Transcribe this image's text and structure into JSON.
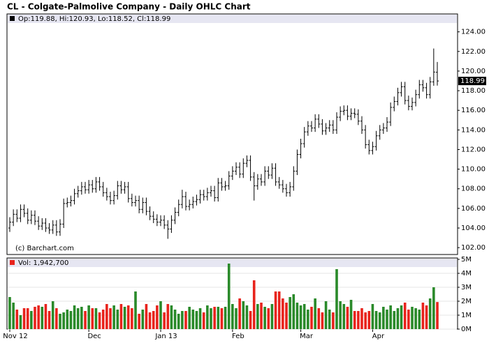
{
  "chart_data": [
    {
      "type": "ohlc",
      "title": "CL - Colgate-Palmolive Company - Daily OHLC Chart",
      "legend_text": "Op:119.88, Hi:120.93, Lo:118.52, Cl:118.99",
      "annotation": "(c) Barchart.com",
      "color": "#000000",
      "last": 118.99,
      "grid": false,
      "ylim": [
        101.3,
        124.9
      ],
      "yticks": [
        {
          "value": 102,
          "label": "102.00"
        },
        {
          "value": 104,
          "label": "104.00"
        },
        {
          "value": 106,
          "label": "106.00"
        },
        {
          "value": 108,
          "label": "108.00"
        },
        {
          "value": 110,
          "label": "110.00"
        },
        {
          "value": 112,
          "label": "112.00"
        },
        {
          "value": 114,
          "label": "114.00"
        },
        {
          "value": 116,
          "label": "116.00"
        },
        {
          "value": 118,
          "label": "118.00"
        },
        {
          "value": 120,
          "label": "120.00"
        },
        {
          "value": 122,
          "label": "122.00"
        },
        {
          "value": 124,
          "label": "124.00"
        }
      ],
      "categories": [
        "Nov 12",
        null,
        null,
        null,
        null,
        null,
        null,
        null,
        null,
        null,
        null,
        null,
        null,
        null,
        null,
        null,
        null,
        null,
        null,
        null,
        null,
        null,
        "Dec",
        null,
        null,
        null,
        null,
        null,
        null,
        null,
        null,
        null,
        null,
        null,
        null,
        null,
        null,
        null,
        null,
        null,
        null,
        null,
        "Jan 13",
        null,
        null,
        null,
        null,
        null,
        null,
        null,
        null,
        null,
        null,
        null,
        null,
        null,
        null,
        null,
        null,
        null,
        null,
        null,
        "Feb",
        null,
        null,
        null,
        null,
        null,
        null,
        null,
        null,
        null,
        null,
        null,
        null,
        null,
        null,
        null,
        null,
        null,
        null,
        "Mar",
        null,
        null,
        null,
        null,
        null,
        null,
        null,
        null,
        null,
        null,
        null,
        null,
        null,
        null,
        null,
        null,
        null,
        null,
        null,
        "Apr",
        null,
        null,
        null,
        null,
        null,
        null,
        null,
        null,
        null,
        null,
        null,
        null,
        null,
        null,
        null,
        null,
        null,
        null
      ],
      "open": [
        104.0,
        104.6,
        105.4,
        105.0,
        105.9,
        105.5,
        104.8,
        105.3,
        104.7,
        104.2,
        104.5,
        104.0,
        103.8,
        104.3,
        103.6,
        104.4,
        106.5,
        106.6,
        106.8,
        107.5,
        107.8,
        108.2,
        107.9,
        108.4,
        108.0,
        108.7,
        108.2,
        107.6,
        107.2,
        106.8,
        107.3,
        108.3,
        107.9,
        108.2,
        107.0,
        106.6,
        106.8,
        105.9,
        106.6,
        105.7,
        105.2,
        104.9,
        104.6,
        104.8,
        104.3,
        103.9,
        104.8,
        105.6,
        106.4,
        107.2,
        106.2,
        106.4,
        106.7,
        106.9,
        107.4,
        107.2,
        107.6,
        107.8,
        107.1,
        108.6,
        108.2,
        108.3,
        109.3,
        109.8,
        110.2,
        109.5,
        110.6,
        110.9,
        109.2,
        108.3,
        109.0,
        108.7,
        109.8,
        109.4,
        110.1,
        108.7,
        108.4,
        108.0,
        107.6,
        108.2,
        109.8,
        111.5,
        112.6,
        113.8,
        114.4,
        114.2,
        115.1,
        114.6,
        113.9,
        114.2,
        114.5,
        114.0,
        115.3,
        115.9,
        116.0,
        115.4,
        115.7,
        115.6,
        114.9,
        114.0,
        112.5,
        111.9,
        112.3,
        113.4,
        114.0,
        114.2,
        114.8,
        116.3,
        116.9,
        117.8,
        118.4,
        117.0,
        116.4,
        116.8,
        117.6,
        118.6,
        118.3,
        117.6,
        118.9,
        119.88
      ],
      "high": [
        105.1,
        105.9,
        105.9,
        106.4,
        106.4,
        106.0,
        105.8,
        105.8,
        105.2,
        105.0,
        105.0,
        104.5,
        104.8,
        104.8,
        104.9,
        107.0,
        107.1,
        107.3,
        108.0,
        108.3,
        108.7,
        108.7,
        108.9,
        108.9,
        109.2,
        109.2,
        108.7,
        108.1,
        107.7,
        107.8,
        108.8,
        108.8,
        108.7,
        108.7,
        107.5,
        107.3,
        107.3,
        107.1,
        107.1,
        106.2,
        105.7,
        105.4,
        105.3,
        105.3,
        104.8,
        105.3,
        106.1,
        106.9,
        107.9,
        107.7,
        106.9,
        107.2,
        107.4,
        107.9,
        107.9,
        108.1,
        108.3,
        108.3,
        109.1,
        109.1,
        108.8,
        109.8,
        110.3,
        110.7,
        110.7,
        111.1,
        111.4,
        111.4,
        109.7,
        109.5,
        109.5,
        110.3,
        110.3,
        110.6,
        110.6,
        109.2,
        108.9,
        108.5,
        108.7,
        110.3,
        112.0,
        113.1,
        114.3,
        114.9,
        114.9,
        115.6,
        115.6,
        115.1,
        114.7,
        115.0,
        115.0,
        115.8,
        116.4,
        116.5,
        116.5,
        116.2,
        116.2,
        116.1,
        115.4,
        114.5,
        113.0,
        112.8,
        113.9,
        114.5,
        114.7,
        115.3,
        116.8,
        117.4,
        118.3,
        118.9,
        118.9,
        117.5,
        117.3,
        118.1,
        119.1,
        119.1,
        118.8,
        119.4,
        122.3,
        120.93
      ],
      "low": [
        103.6,
        104.2,
        104.6,
        104.6,
        105.1,
        104.4,
        104.4,
        104.3,
        103.8,
        103.8,
        103.6,
        103.4,
        103.4,
        103.2,
        103.2,
        104.0,
        106.1,
        106.2,
        106.4,
        107.1,
        107.4,
        107.5,
        107.5,
        107.6,
        107.6,
        107.8,
        107.2,
        106.8,
        106.4,
        106.4,
        106.9,
        107.5,
        107.5,
        106.6,
        106.2,
        106.2,
        105.5,
        105.5,
        105.3,
        104.8,
        104.5,
        104.2,
        104.2,
        103.9,
        102.9,
        103.5,
        104.4,
        105.2,
        106.0,
        105.8,
        105.8,
        106.0,
        106.3,
        106.5,
        106.8,
        106.8,
        107.2,
        106.7,
        106.7,
        107.8,
        107.8,
        107.9,
        108.9,
        109.4,
        109.1,
        109.1,
        110.2,
        108.8,
        106.8,
        107.9,
        108.3,
        108.3,
        109.0,
        109.0,
        108.3,
        108.0,
        107.6,
        107.2,
        107.2,
        107.8,
        109.4,
        111.1,
        112.2,
        113.4,
        113.8,
        113.8,
        114.2,
        113.5,
        113.5,
        113.8,
        113.6,
        113.6,
        114.9,
        115.5,
        115.0,
        115.0,
        115.2,
        114.5,
        113.6,
        112.1,
        111.5,
        111.5,
        111.9,
        113.0,
        113.6,
        113.8,
        114.4,
        115.9,
        116.5,
        117.4,
        116.6,
        116.0,
        116.0,
        116.4,
        117.2,
        117.9,
        117.2,
        117.2,
        118.5,
        118.52
      ],
      "close": [
        104.6,
        105.4,
        105.0,
        105.9,
        105.5,
        104.8,
        105.3,
        104.7,
        104.2,
        104.5,
        104.0,
        103.8,
        104.3,
        103.6,
        104.4,
        106.5,
        106.6,
        106.8,
        107.5,
        107.8,
        108.2,
        107.9,
        108.4,
        108.0,
        108.7,
        108.2,
        107.6,
        107.2,
        106.8,
        107.3,
        108.3,
        107.9,
        108.2,
        107.0,
        106.6,
        106.8,
        105.9,
        106.6,
        105.7,
        105.2,
        104.9,
        104.6,
        104.8,
        104.3,
        103.9,
        104.8,
        105.6,
        106.4,
        107.2,
        106.2,
        106.4,
        106.7,
        106.9,
        107.4,
        107.2,
        107.6,
        107.8,
        107.1,
        108.6,
        108.2,
        108.3,
        109.3,
        109.8,
        110.2,
        109.5,
        110.6,
        110.9,
        109.2,
        108.3,
        109.0,
        108.7,
        109.8,
        109.4,
        110.1,
        108.7,
        108.4,
        108.0,
        107.6,
        108.2,
        109.8,
        111.5,
        112.6,
        113.8,
        114.4,
        114.2,
        115.1,
        114.6,
        113.9,
        114.2,
        114.5,
        114.0,
        115.3,
        115.9,
        116.0,
        115.4,
        115.7,
        115.6,
        114.9,
        114.0,
        112.5,
        111.9,
        112.3,
        113.4,
        114.0,
        114.2,
        114.8,
        116.3,
        116.9,
        117.8,
        118.4,
        117.0,
        116.4,
        116.8,
        117.6,
        118.6,
        118.3,
        117.6,
        118.9,
        119.9,
        118.99
      ]
    },
    {
      "type": "volume",
      "legend_text": "Vol: 1,942,700",
      "up_color": "#2a8a2a",
      "down_color": "#e8231c",
      "grid": true,
      "ylim": [
        0,
        5000000
      ],
      "yticks": [
        {
          "value": 0,
          "label": "0M"
        },
        {
          "value": 1000000,
          "label": "1M"
        },
        {
          "value": 2000000,
          "label": "2M"
        },
        {
          "value": 3000000,
          "label": "3M"
        },
        {
          "value": 4000000,
          "label": "4M"
        },
        {
          "value": 5000000,
          "label": "5M"
        }
      ],
      "values": [
        2300000,
        1900000,
        1400000,
        1000000,
        1500000,
        1500000,
        1300000,
        1600000,
        1700000,
        1600000,
        1800000,
        1300000,
        2000000,
        1500000,
        1100000,
        1200000,
        1400000,
        1300000,
        1700000,
        1500000,
        1600000,
        1300000,
        1700000,
        1500000,
        1500000,
        1200000,
        1400000,
        1800000,
        1500000,
        1700000,
        1400000,
        1800000,
        1600000,
        1700000,
        1500000,
        2700000,
        1100000,
        1400000,
        1800000,
        1200000,
        1300000,
        1700000,
        2000000,
        1200000,
        1800000,
        1700000,
        1400000,
        1100000,
        1300000,
        1300000,
        1600000,
        1400000,
        1300000,
        1500000,
        1200000,
        1700000,
        1500000,
        1600000,
        1600000,
        1500000,
        1600000,
        4700000,
        1800000,
        1500000,
        2200000,
        2000000,
        1700000,
        1300000,
        3500000,
        1800000,
        1900000,
        1600000,
        1500000,
        1800000,
        2700000,
        2700000,
        2200000,
        1900000,
        2300000,
        2500000,
        1900000,
        1700000,
        1800000,
        1400000,
        1600000,
        2200000,
        1500000,
        1200000,
        2000000,
        1400000,
        1200000,
        4300000,
        2000000,
        1800000,
        1600000,
        2100000,
        1300000,
        1300000,
        1500000,
        1200000,
        1300000,
        1800000,
        1300000,
        1200000,
        1600000,
        1400000,
        1700000,
        1300000,
        1500000,
        1700000,
        1900000,
        1400000,
        1600000,
        1500000,
        1400000,
        1900000,
        1700000,
        2200000,
        3000000,
        1942700
      ]
    }
  ]
}
